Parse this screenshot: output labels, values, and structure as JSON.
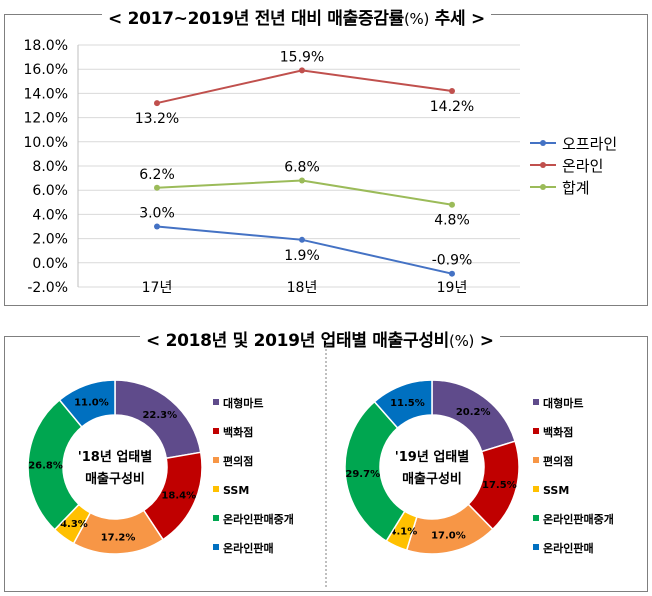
{
  "titles": {
    "top": "< 2017~2019년 전년 대비 매출증감률",
    "top_unit": "(%)",
    "top_suffix": " 추세 >",
    "bottom": "< 2018년 및 2019년 업태별 매출구성비",
    "bottom_unit": "(%)",
    "bottom_suffix": " >"
  },
  "chart_data": [
    {
      "type": "line",
      "categories": [
        "17년",
        "18년",
        "19년"
      ],
      "ylim": [
        -2,
        18
      ],
      "yticks": [
        "-2.0%",
        "0.0%",
        "2.0%",
        "4.0%",
        "6.0%",
        "8.0%",
        "10.0%",
        "12.0%",
        "14.0%",
        "16.0%",
        "18.0%"
      ],
      "grid": true,
      "legend_position": "right",
      "series": [
        {
          "name": "오프라인",
          "color": "#4472c4",
          "values": [
            3.0,
            1.9,
            -0.9
          ],
          "labels": [
            "3.0%",
            "1.9%",
            "-0.9%"
          ],
          "label_pos": [
            "above",
            "below",
            "above"
          ]
        },
        {
          "name": "온라인",
          "color": "#c0504d",
          "values": [
            13.2,
            15.9,
            14.2
          ],
          "labels": [
            "13.2%",
            "15.9%",
            "14.2%"
          ],
          "label_pos": [
            "below",
            "above",
            "below"
          ]
        },
        {
          "name": "합계",
          "color": "#9bbb59",
          "values": [
            6.2,
            6.8,
            4.8
          ],
          "labels": [
            "6.2%",
            "6.8%",
            "4.8%"
          ],
          "label_pos": [
            "above",
            "above",
            "below"
          ]
        }
      ]
    },
    {
      "type": "pie",
      "center_label": [
        "'18년 업태별",
        "매출구성비"
      ],
      "categories": [
        "대형마트",
        "백화점",
        "편의점",
        "SSM",
        "온라인판매중개",
        "온라인판매"
      ],
      "values": [
        22.3,
        18.4,
        17.2,
        4.3,
        26.8,
        11.0
      ],
      "labels": [
        "22.3%",
        "18.4%",
        "17.2%",
        "4.3%",
        "26.8%",
        "11.0%"
      ],
      "colors": [
        "#5f4b8b",
        "#c00000",
        "#f79646",
        "#ffc000",
        "#00a650",
        "#0070c0"
      ]
    },
    {
      "type": "pie",
      "center_label": [
        "'19년 업태별",
        "매출구성비"
      ],
      "categories": [
        "대형마트",
        "백화점",
        "편의점",
        "SSM",
        "온라인판매중개",
        "온라인판매"
      ],
      "values": [
        20.2,
        17.5,
        17.0,
        4.1,
        29.7,
        11.5
      ],
      "labels": [
        "20.2%",
        "17.5%",
        "17.0%",
        "4.1%",
        "29.7%",
        "11.5%"
      ],
      "colors": [
        "#5f4b8b",
        "#c00000",
        "#f79646",
        "#ffc000",
        "#00a650",
        "#0070c0"
      ]
    }
  ]
}
